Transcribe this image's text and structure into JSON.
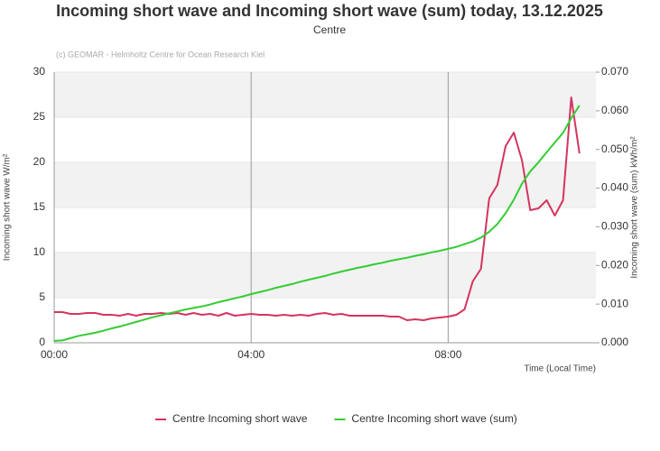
{
  "chart_data": {
    "type": "line",
    "title": "Incoming short wave and Incoming short wave (sum) today, 13.12.2025",
    "subtitle": "Centre",
    "annotation": "(c) GEOMAR - Helmholtz Centre for Ocean Research Kiel",
    "x_label": "Time (Local Time)",
    "y_label": "Incoming short wave W/m²",
    "y2_label": "Incoming short wave (sum) kWh/m²",
    "xlim": [
      "00:00",
      "11:00"
    ],
    "xticks": [
      "00:00",
      "04:00",
      "08:00"
    ],
    "ylim": [
      0,
      30
    ],
    "yticks": [
      0,
      5,
      10,
      15,
      20,
      25,
      30
    ],
    "y2lim": [
      0,
      0.07
    ],
    "y2ticks": [
      {
        "value": 0,
        "label": "0.000"
      },
      {
        "value": 0.01,
        "label": "0.010"
      },
      {
        "value": 0.02,
        "label": "0.020"
      },
      {
        "value": 0.03,
        "label": "0.030"
      },
      {
        "value": 0.04,
        "label": "0.040"
      },
      {
        "value": 0.05,
        "label": "0.050"
      },
      {
        "value": 0.06,
        "label": "0.060"
      },
      {
        "value": 0.07,
        "label": "0.070"
      }
    ],
    "grid": true,
    "legend": "bottom",
    "x": [
      "00:00",
      "00:10",
      "00:20",
      "00:30",
      "00:40",
      "00:50",
      "01:00",
      "01:10",
      "01:20",
      "01:30",
      "01:40",
      "01:50",
      "02:00",
      "02:10",
      "02:20",
      "02:30",
      "02:40",
      "02:50",
      "03:00",
      "03:10",
      "03:20",
      "03:30",
      "03:40",
      "03:50",
      "04:00",
      "04:10",
      "04:20",
      "04:30",
      "04:40",
      "04:50",
      "05:00",
      "05:10",
      "05:20",
      "05:30",
      "05:40",
      "05:50",
      "06:00",
      "06:10",
      "06:20",
      "06:30",
      "06:40",
      "06:50",
      "07:00",
      "07:10",
      "07:20",
      "07:30",
      "07:40",
      "07:50",
      "08:00",
      "08:10",
      "08:20",
      "08:30",
      "08:40",
      "08:50",
      "09:00",
      "09:10",
      "09:20",
      "09:30",
      "09:40",
      "09:50",
      "10:00",
      "10:10",
      "10:20",
      "10:30",
      "10:40"
    ],
    "series": [
      {
        "name": "Centre Incoming short wave",
        "color": "#d4345f",
        "axis": "y",
        "values": [
          3.4,
          3.4,
          3.2,
          3.2,
          3.3,
          3.3,
          3.1,
          3.1,
          3.0,
          3.2,
          3.0,
          3.2,
          3.2,
          3.3,
          3.2,
          3.3,
          3.1,
          3.3,
          3.1,
          3.2,
          3.0,
          3.3,
          3.0,
          3.1,
          3.2,
          3.1,
          3.1,
          3.0,
          3.1,
          3.0,
          3.1,
          3.0,
          3.2,
          3.3,
          3.1,
          3.2,
          3.0,
          3.0,
          3.0,
          3.0,
          3.0,
          2.9,
          2.9,
          2.5,
          2.6,
          2.5,
          2.7,
          2.8,
          2.9,
          3.1,
          3.7,
          6.8,
          8.2,
          16,
          17.5,
          21.8,
          23.3,
          20.2,
          14.7,
          14.9,
          15.8,
          14.1,
          15.8,
          27.2,
          21
        ]
      },
      {
        "name": "Centre Incoming short wave (sum)",
        "color": "#33cc33",
        "axis": "y2",
        "values": [
          0.0005,
          0.0006,
          0.0012,
          0.0018,
          0.0022,
          0.0026,
          0.0031,
          0.0037,
          0.0042,
          0.0048,
          0.0054,
          0.006,
          0.0066,
          0.0071,
          0.0076,
          0.0081,
          0.0086,
          0.009,
          0.0094,
          0.0099,
          0.0105,
          0.011,
          0.0115,
          0.012,
          0.0126,
          0.0131,
          0.0136,
          0.0142,
          0.0147,
          0.0152,
          0.0158,
          0.0163,
          0.0168,
          0.0173,
          0.0179,
          0.0184,
          0.0189,
          0.0194,
          0.0198,
          0.0203,
          0.0207,
          0.0212,
          0.0216,
          0.022,
          0.0225,
          0.0229,
          0.0234,
          0.0238,
          0.0243,
          0.0248,
          0.0255,
          0.0262,
          0.0272,
          0.0287,
          0.0307,
          0.0335,
          0.037,
          0.0412,
          0.0443,
          0.0467,
          0.0493,
          0.0518,
          0.0543,
          0.0581,
          0.0614
        ]
      }
    ]
  }
}
